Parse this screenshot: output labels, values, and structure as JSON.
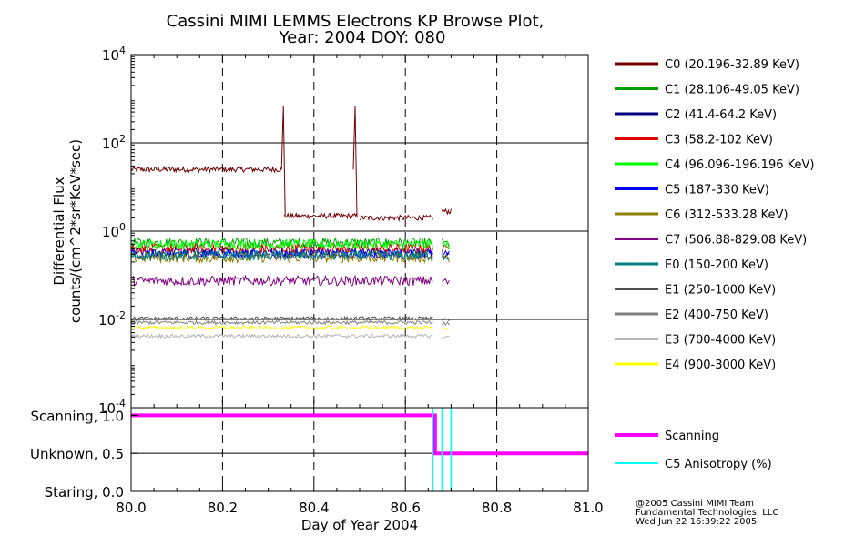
{
  "title_line1": "Cassini MIMI LEMMS Electrons KP Browse Plot,",
  "title_line2": "Year: 2004 DOY: 080",
  "credits": {
    "line1": "@2005 Cassini MIMI Team",
    "line2": "Fundamental Technologies, LLC",
    "line3": "Wed Jun 22 16:39:22 2005"
  },
  "chart_data": [
    {
      "type": "line",
      "title": "Cassini MIMI LEMMS Electrons KP Browse Plot, Year: 2004 DOY: 080",
      "ylabel_line1": "Differential Flux",
      "ylabel_line2": "counts/(cm^2*sr*KeV*sec)",
      "yscale": "log",
      "ylim": [
        0.0001,
        10000
      ],
      "yticks": [
        {
          "value": 10000,
          "base": "10",
          "exp": "4"
        },
        {
          "value": 100,
          "base": "10",
          "exp": "2"
        },
        {
          "value": 1,
          "base": "10",
          "exp": "0"
        },
        {
          "value": 0.01,
          "base": "10",
          "exp": "-2"
        },
        {
          "value": 0.0001,
          "base": "10",
          "exp": "-4"
        }
      ],
      "xlim": [
        80.0,
        81.0
      ],
      "vertical_dashed_gridlines_at": [
        80.2,
        80.4,
        80.6,
        80.8
      ],
      "legend_position": "right",
      "series": [
        {
          "name": "C0 (20.196-32.89 KeV)",
          "color": "#700000",
          "segments": [
            [
              80.0,
              80.33,
              25
            ],
            [
              80.335,
              80.495,
              2.2
            ],
            [
              80.5,
              80.66,
              2.0
            ],
            [
              80.68,
              80.7,
              2.8
            ]
          ],
          "spikes": [
            [
              80.333,
              700
            ],
            [
              80.49,
              700
            ]
          ]
        },
        {
          "name": "C1 (28.106-49.05 KeV)",
          "color": "#00a000",
          "level": 0.55
        },
        {
          "name": "C2 (41.4-64.2 KeV)",
          "color": "#000080",
          "level": 0.33
        },
        {
          "name": "C3 (58.2-102 KeV)",
          "color": "#e00000",
          "level": 0.4
        },
        {
          "name": "C4 (96.096-196.196 KeV)",
          "color": "#00ff00",
          "level": 0.5
        },
        {
          "name": "C5 (187-330 KeV)",
          "color": "#0000ff",
          "level": 0.3
        },
        {
          "name": "C6 (312-533.28 KeV)",
          "color": "#908000",
          "level": 0.25
        },
        {
          "name": "C7 (506.88-829.08 KeV)",
          "color": "#800080",
          "level": 0.075
        },
        {
          "name": "E0 (150-200 KeV)",
          "color": "#008080",
          "level": 0.28
        },
        {
          "name": "E1 (250-1000 KeV)",
          "color": "#505050",
          "level": 0.0105
        },
        {
          "name": "E2 (400-750 KeV)",
          "color": "#808080",
          "level": 0.0085
        },
        {
          "name": "E3 (700-4000 KeV)",
          "color": "#b4b4b4",
          "level": 0.0042
        },
        {
          "name": "E4 (900-3000 KeV)",
          "color": "#ffff00",
          "level": 0.0065
        }
      ]
    },
    {
      "type": "line",
      "xlabel": "Day of Year 2004",
      "xlim": [
        80.0,
        81.0
      ],
      "xticks": [
        "80.0",
        "80.2",
        "80.4",
        "80.6",
        "80.8",
        "81.0"
      ],
      "ylim": [
        0,
        1.1
      ],
      "yticks": [
        {
          "value": 1.0,
          "label": "Scanning, 1.0"
        },
        {
          "value": 0.5,
          "label": "Unknown, 0.5"
        },
        {
          "value": 0.0,
          "label": "Staring, 0.0"
        }
      ],
      "series": [
        {
          "name": "Scanning",
          "color": "#ff00ff",
          "points": [
            [
              80.0,
              1.0
            ],
            [
              80.665,
              1.0
            ],
            [
              80.665,
              0.5
            ],
            [
              81.0,
              0.5
            ]
          ]
        },
        {
          "name": "C5 Anisotropy (%)",
          "color": "#00ffff",
          "vlines": [
            80.66,
            80.68,
            80.7
          ]
        }
      ]
    }
  ]
}
